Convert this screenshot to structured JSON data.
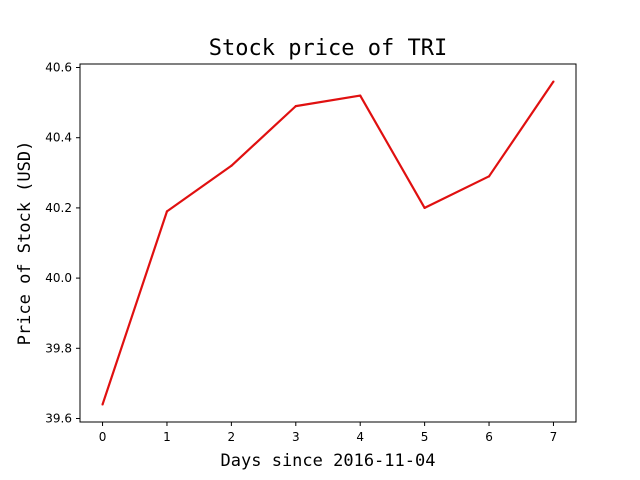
{
  "chart_data": {
    "type": "line",
    "title": "Stock price of TRI",
    "xlabel": "Days since 2016-11-04",
    "ylabel": "Price of Stock (USD)",
    "x": [
      0,
      1,
      2,
      3,
      4,
      5,
      6,
      7
    ],
    "series": [
      {
        "values": [
          39.64,
          40.19,
          40.32,
          40.49,
          40.52,
          40.2,
          40.29,
          40.56
        ],
        "color": "#e01010"
      }
    ],
    "xticks": [
      0,
      1,
      2,
      3,
      4,
      5,
      6,
      7
    ],
    "yticks": [
      "39.6",
      "39.8",
      "40.0",
      "40.2",
      "40.4",
      "40.6"
    ],
    "xlim": [
      -0.35,
      7.35
    ],
    "ylim": [
      39.59,
      40.61
    ],
    "grid": false,
    "legend": false
  }
}
